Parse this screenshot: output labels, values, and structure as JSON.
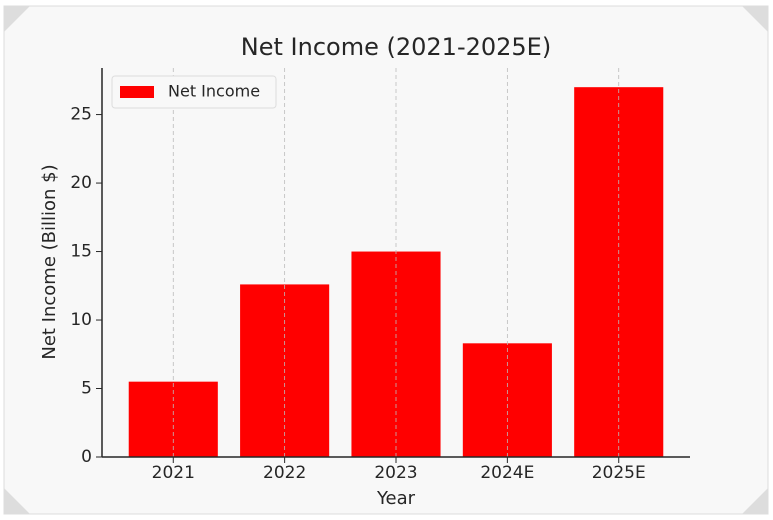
{
  "chart_data": {
    "type": "bar",
    "title": "Net Income (2021-2025E)",
    "x_label": "Year",
    "y_label": "Net Income (Billion $)",
    "categories": [
      "2021",
      "2022",
      "2023",
      "2024E",
      "2025E"
    ],
    "series": [
      {
        "name": "Net Income",
        "color": "#ff0000",
        "values": [
          5.5,
          12.6,
          15.0,
          8.3,
          27.0
        ]
      }
    ],
    "ylim": [
      0,
      28.4
    ],
    "yticks": [
      0,
      5,
      10,
      15,
      20,
      25
    ],
    "grid": "x",
    "legend": "upper left"
  }
}
